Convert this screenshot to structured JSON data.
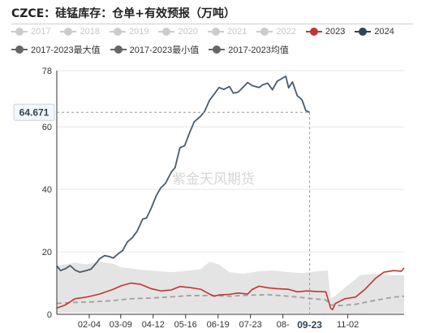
{
  "title": "CZCE：硅锰库存：仓单+有效预报（万吨）",
  "watermark": "紫金天风期货",
  "legend": [
    {
      "label": "2017",
      "color": "#cccccc",
      "active": false
    },
    {
      "label": "2018",
      "color": "#cccccc",
      "active": false
    },
    {
      "label": "2019",
      "color": "#cccccc",
      "active": false
    },
    {
      "label": "2020",
      "color": "#cccccc",
      "active": false
    },
    {
      "label": "2021",
      "color": "#cccccc",
      "active": false
    },
    {
      "label": "2022",
      "color": "#cccccc",
      "active": false
    },
    {
      "label": "2023",
      "color": "#c23531",
      "active": true
    },
    {
      "label": "2024",
      "color": "#2f4554",
      "active": true
    },
    {
      "label": "2017-2023最大值",
      "color": "#666666",
      "active": true
    },
    {
      "label": "2017-2023最小值",
      "color": "#666666",
      "active": true
    },
    {
      "label": "2017-2023均值",
      "color": "#666666",
      "active": true
    }
  ],
  "tooltip": {
    "y_value": "64.671",
    "x_value": "09-23"
  },
  "chart_data": {
    "type": "line",
    "ylim": [
      0,
      78
    ],
    "yticks": [
      0,
      20,
      40,
      60,
      78
    ],
    "xlim": [
      "01-01",
      "12-31"
    ],
    "xticks": [
      "02-04",
      "03-09",
      "04-12",
      "05-16",
      "06-19",
      "07-23",
      "08-",
      "11-02"
    ],
    "series": [
      {
        "name": "2024",
        "color": "#4a5b6c",
        "x": [
          "01-01",
          "01-05",
          "01-10",
          "01-15",
          "01-20",
          "01-25",
          "02-01",
          "02-06",
          "02-10",
          "02-15",
          "02-20",
          "02-25",
          "03-01",
          "03-06",
          "03-11",
          "03-16",
          "03-21",
          "03-26",
          "04-01",
          "04-05",
          "04-10",
          "04-15",
          "04-20",
          "04-25",
          "05-01",
          "05-05",
          "05-10",
          "05-15",
          "05-20",
          "05-25",
          "06-01",
          "06-05",
          "06-10",
          "06-15",
          "06-20",
          "06-25",
          "07-01",
          "07-05",
          "07-10",
          "07-15",
          "07-20",
          "07-25",
          "08-01",
          "08-05",
          "08-10",
          "08-15",
          "08-20",
          "08-25",
          "08-29",
          "09-01",
          "09-05",
          "09-10",
          "09-15",
          "09-19",
          "09-23"
        ],
        "values": [
          15.5,
          14,
          14.6,
          15.6,
          14.2,
          13.5,
          14,
          14.5,
          15.9,
          17.8,
          18.8,
          18.5,
          18,
          19.3,
          20.4,
          23.2,
          24.5,
          26.5,
          30.5,
          30.8,
          34,
          37.8,
          40.5,
          42,
          45.5,
          47,
          53.3,
          54,
          58,
          61.6,
          63.5,
          65,
          68.5,
          70.5,
          72.6,
          72,
          72.9,
          70.8,
          71.1,
          72.6,
          74.2,
          73.2,
          72.6,
          73.5,
          74,
          71.9,
          74.6,
          75.5,
          76.2,
          72.5,
          74.4,
          70,
          68.7,
          65.2,
          64.671
        ]
      },
      {
        "name": "2023",
        "color": "#c23531",
        "x": [
          "01-01",
          "01-10",
          "01-20",
          "02-01",
          "02-15",
          "03-01",
          "03-10",
          "03-20",
          "03-30",
          "04-10",
          "04-20",
          "05-01",
          "05-10",
          "05-20",
          "06-01",
          "06-10",
          "06-15",
          "06-20",
          "07-01",
          "07-10",
          "07-20",
          "07-25",
          "08-01",
          "08-10",
          "08-20",
          "09-01",
          "09-10",
          "09-20",
          "10-01",
          "10-10",
          "10-15",
          "10-17",
          "10-20",
          "10-30",
          "11-10",
          "11-20",
          "12-01",
          "12-10",
          "12-20",
          "12-28",
          "12-31"
        ],
        "values": [
          2,
          3,
          5,
          5.5,
          6.5,
          8,
          9.2,
          10,
          9.6,
          8.2,
          7.5,
          7.8,
          8.9,
          8.6,
          8,
          6.5,
          5.8,
          6.2,
          6.4,
          6.8,
          6.5,
          8,
          9,
          8.5,
          8.2,
          8,
          7.2,
          7.5,
          7.3,
          7.2,
          2,
          1.5,
          3.5,
          5,
          5.5,
          8,
          11.5,
          13.5,
          14,
          13.8,
          14.8
        ]
      },
      {
        "name": "2017-2023最大值",
        "color": "#d6d6d6",
        "x": [
          "01-01",
          "01-20",
          "02-01",
          "02-15",
          "03-01",
          "03-10",
          "04-01",
          "05-01",
          "05-20",
          "06-01",
          "06-10",
          "06-20",
          "07-01",
          "07-15",
          "08-01",
          "08-15",
          "09-01",
          "09-15",
          "10-01",
          "10-12",
          "10-15",
          "10-20",
          "11-01",
          "11-15",
          "12-01",
          "12-15",
          "12-31"
        ],
        "values": [
          15.5,
          16.5,
          16,
          16.8,
          16.2,
          15,
          14.2,
          13.5,
          14,
          14.5,
          16.8,
          16,
          13.5,
          13,
          13.8,
          14,
          13.5,
          13.2,
          13.8,
          14,
          5,
          6,
          9,
          12.5,
          13,
          12.5,
          12.5
        ]
      },
      {
        "name": "2017-2023最小值",
        "color": "#d6d6d6",
        "x": [
          "01-01",
          "03-01",
          "06-01",
          "09-01",
          "10-15",
          "11-01",
          "12-31"
        ],
        "values": [
          0.5,
          0.5,
          0.4,
          0.4,
          0.3,
          0.3,
          0.4
        ]
      },
      {
        "name": "2017-2023均值",
        "color": "#a0a0a0",
        "x": [
          "01-01",
          "01-20",
          "02-10",
          "03-01",
          "03-20",
          "04-10",
          "05-01",
          "05-20",
          "06-10",
          "07-01",
          "07-20",
          "08-10",
          "09-01",
          "09-20",
          "10-10",
          "10-15",
          "10-25",
          "11-10",
          "12-01",
          "12-20",
          "12-31"
        ],
        "values": [
          3.5,
          3.8,
          4,
          4.4,
          5,
          5.2,
          5.6,
          6,
          6,
          5.8,
          6.1,
          6.3,
          5.8,
          5.2,
          4.6,
          3,
          2.8,
          3.2,
          4.5,
          5.5,
          5.8
        ]
      }
    ]
  }
}
